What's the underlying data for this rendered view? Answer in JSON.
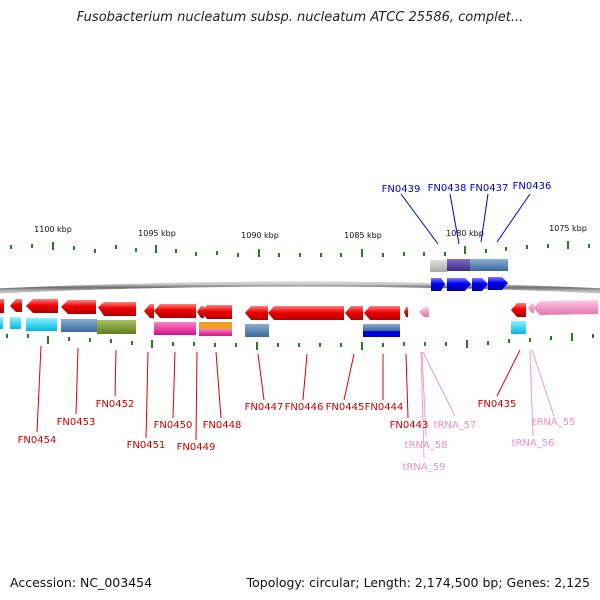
{
  "title": "Fusobacterium nucleatum subsp. nucleatum ATCC 25586, complet...",
  "footer": {
    "accession": "Accession: NC_003454",
    "topology": "Topology: circular; Length: 2,174,500 bp; Genes: 2,125"
  },
  "ruler": {
    "kbp_labels": [
      "1100 kbp",
      "1095 kbp",
      "1090 kbp",
      "1085 kbp",
      "1080 kbp",
      "1075 kbp"
    ]
  },
  "gene_labels_top": [
    "FN0439",
    "FN0438",
    "FN0437",
    "FN0436"
  ],
  "gene_labels_bottom": [
    "FN0454",
    "FN0453",
    "FN0452",
    "FN0451",
    "FN0450",
    "FN0449",
    "FN0448",
    "FN0447",
    "FN0446",
    "FN0445",
    "FN0444",
    "FN0443",
    "FN0435"
  ],
  "trna_labels": [
    "tRNA_57",
    "tRNA_58",
    "tRNA_59",
    "tRNA_56",
    "tRNA_55"
  ],
  "colors": {
    "forward_gene": "#0000ee",
    "reverse_gene": "#ee0000",
    "trna": "#f29ac8",
    "backbone": "#888888",
    "ticks": "#2a7a2a"
  }
}
